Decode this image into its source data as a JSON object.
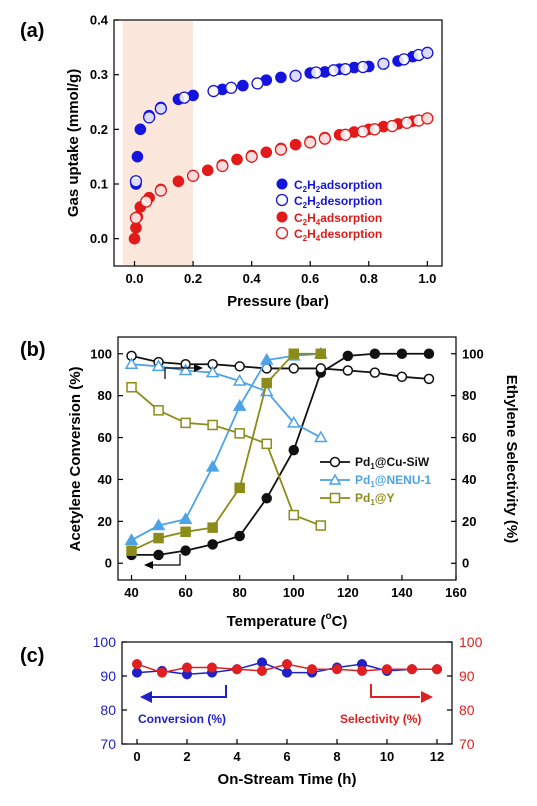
{
  "panels": {
    "a": {
      "label": "(a)"
    },
    "b": {
      "label": "(b)"
    },
    "c": {
      "label": "(c)"
    }
  },
  "colors": {
    "c2h2": "#1414dc",
    "c2h4": "#e21a1a",
    "cu_siw": "#111111",
    "nenu": "#4da3e6",
    "y": "#8c8c1a",
    "highlight": "#fbe7dc",
    "panel_c_conversion": "#2020c8",
    "panel_c_selectivity": "#e02020"
  },
  "chart_data": [
    {
      "panel": "a",
      "type": "scatter",
      "title": "",
      "xlabel": "Pressure (bar)",
      "ylabel": "Gas uptake (mmol/g)",
      "xlim": [
        -0.07,
        1.05
      ],
      "ylim": [
        -0.05,
        0.4
      ],
      "xticks": [
        "0.0",
        "0.2",
        "0.4",
        "0.6",
        "0.8",
        "1.0"
      ],
      "yticks": [
        "0.0",
        "0.1",
        "0.2",
        "0.3",
        "0.4"
      ],
      "highlight_region": [
        -0.04,
        0.2
      ],
      "legend_position": "bottom-right",
      "series": [
        {
          "name": "C2H2 adsorption",
          "legend_prefix": "C",
          "legend_sub1": "2",
          "legend_mid": "H",
          "legend_sub2": "2",
          "legend_suffix": "adsorption",
          "marker": "filled",
          "color_key": "c2h2",
          "x": [
            0.005,
            0.01,
            0.02,
            0.05,
            0.09,
            0.15,
            0.2,
            0.3,
            0.37,
            0.45,
            0.5,
            0.55,
            0.6,
            0.65,
            0.7,
            0.75,
            0.8,
            0.85,
            0.9,
            0.95,
            1.0
          ],
          "y": [
            0.1,
            0.15,
            0.2,
            0.225,
            0.24,
            0.255,
            0.262,
            0.273,
            0.28,
            0.29,
            0.295,
            0.298,
            0.303,
            0.305,
            0.31,
            0.313,
            0.315,
            0.32,
            0.325,
            0.333,
            0.34
          ]
        },
        {
          "name": "C2H2 desorption",
          "legend_prefix": "C",
          "legend_sub1": "2",
          "legend_mid": "H",
          "legend_sub2": "2",
          "legend_suffix": "desorption",
          "marker": "open",
          "color_key": "c2h2",
          "x": [
            0.005,
            0.05,
            0.09,
            0.17,
            0.27,
            0.33,
            0.42,
            0.55,
            0.62,
            0.68,
            0.72,
            0.78,
            0.85,
            0.92,
            0.97,
            1.0
          ],
          "y": [
            0.105,
            0.222,
            0.238,
            0.258,
            0.27,
            0.276,
            0.284,
            0.298,
            0.304,
            0.308,
            0.31,
            0.314,
            0.32,
            0.328,
            0.336,
            0.34
          ]
        },
        {
          "name": "C2H4 adsorption",
          "legend_prefix": "C",
          "legend_sub1": "2",
          "legend_mid": "H",
          "legend_sub2": "4",
          "legend_suffix": "adsorption",
          "marker": "filled",
          "color_key": "c2h4",
          "x": [
            0.0,
            0.005,
            0.01,
            0.02,
            0.05,
            0.09,
            0.15,
            0.2,
            0.25,
            0.3,
            0.35,
            0.4,
            0.45,
            0.5,
            0.55,
            0.6,
            0.65,
            0.7,
            0.75,
            0.8,
            0.85,
            0.9,
            0.95,
            1.0
          ],
          "y": [
            0.0,
            0.02,
            0.04,
            0.058,
            0.075,
            0.09,
            0.105,
            0.115,
            0.125,
            0.135,
            0.145,
            0.152,
            0.158,
            0.165,
            0.172,
            0.178,
            0.185,
            0.19,
            0.195,
            0.2,
            0.205,
            0.21,
            0.215,
            0.22
          ]
        },
        {
          "name": "C2H4 desorption",
          "legend_prefix": "C",
          "legend_sub1": "2",
          "legend_mid": "H",
          "legend_sub2": "4",
          "legend_suffix": "desorption",
          "marker": "open",
          "color_key": "c2h4",
          "x": [
            0.005,
            0.04,
            0.09,
            0.2,
            0.3,
            0.4,
            0.5,
            0.6,
            0.65,
            0.72,
            0.78,
            0.82,
            0.88,
            0.93,
            0.97,
            1.0
          ],
          "y": [
            0.038,
            0.068,
            0.088,
            0.115,
            0.133,
            0.15,
            0.163,
            0.176,
            0.183,
            0.19,
            0.196,
            0.2,
            0.206,
            0.212,
            0.216,
            0.22
          ]
        }
      ]
    },
    {
      "panel": "b",
      "type": "line",
      "title": "",
      "xlabel_prefix": "Temperature (",
      "xlabel_sup": "o",
      "xlabel_suffix": "C)",
      "ylabel": "Acetylene Conversion (%)",
      "y2label": "Ethylene Selectivity (%)",
      "xlim": [
        35,
        160
      ],
      "ylim": [
        -8,
        108
      ],
      "xticks": [
        "40",
        "60",
        "80",
        "100",
        "120",
        "140",
        "160"
      ],
      "yticks": [
        "0",
        "20",
        "40",
        "60",
        "80",
        "100"
      ],
      "legend_position": "right",
      "series": [
        {
          "name": "Pd1@Cu-SiW",
          "legend_prefix": "Pd",
          "legend_sub": "1",
          "legend_suffix": "@Cu-SiW",
          "marker": "circle",
          "color_key": "cu_siw",
          "axis": "left",
          "x": [
            40,
            50,
            60,
            70,
            80,
            90,
            100,
            110,
            120,
            130,
            140,
            150
          ],
          "y": [
            4,
            4,
            6,
            9,
            13,
            31,
            54,
            91,
            99,
            100,
            100,
            100
          ]
        },
        {
          "name": "Pd1@Cu-SiW",
          "marker": "circle",
          "color_key": "cu_siw",
          "axis": "right",
          "x": [
            40,
            50,
            60,
            70,
            80,
            90,
            100,
            110,
            120,
            130,
            140,
            150
          ],
          "y": [
            99,
            96,
            95,
            95,
            94,
            93,
            93,
            93,
            92,
            91,
            89,
            88
          ]
        },
        {
          "name": "Pd1@NENU-1",
          "legend_prefix": "Pd",
          "legend_sub": "1",
          "legend_suffix": "@NENU-1",
          "marker": "triangle",
          "color_key": "nenu",
          "axis": "left",
          "x": [
            40,
            50,
            60,
            70,
            80,
            90,
            100,
            110
          ],
          "y": [
            11,
            18,
            21,
            46,
            75,
            97,
            99,
            100
          ]
        },
        {
          "name": "Pd1@NENU-1",
          "marker": "triangle",
          "color_key": "nenu",
          "axis": "right",
          "x": [
            40,
            50,
            60,
            70,
            80,
            90,
            100,
            110
          ],
          "y": [
            95,
            94,
            92,
            91,
            87,
            82,
            67,
            60
          ]
        },
        {
          "name": "Pd1@Y",
          "legend_prefix": "Pd",
          "legend_sub": "1",
          "legend_suffix": "@Y",
          "marker": "square",
          "color_key": "y",
          "axis": "left",
          "x": [
            40,
            50,
            60,
            70,
            80,
            90,
            100,
            110
          ],
          "y": [
            6,
            12,
            15,
            17,
            36,
            86,
            100,
            100
          ]
        },
        {
          "name": "Pd1@Y",
          "marker": "square",
          "color_key": "y",
          "axis": "right",
          "x": [
            40,
            50,
            60,
            70,
            80,
            90,
            100,
            110
          ],
          "y": [
            84,
            73,
            67,
            66,
            62,
            57,
            23,
            18
          ]
        }
      ]
    },
    {
      "panel": "c",
      "type": "line",
      "title": "",
      "xlabel": "On-Stream Time (h)",
      "xlim": [
        -0.6,
        12.6
      ],
      "ylim": [
        70,
        100
      ],
      "xticks": [
        "0",
        "2",
        "4",
        "6",
        "8",
        "10",
        "12"
      ],
      "yticks": [
        "70",
        "80",
        "90",
        "100"
      ],
      "series": [
        {
          "name": "Conversion (%)",
          "marker": "circle",
          "color_key": "panel_c_conversion",
          "axis": "left",
          "arrow": "left",
          "x": [
            0,
            1,
            2,
            3,
            4,
            5,
            6,
            7,
            8,
            9,
            10,
            11,
            12
          ],
          "y": [
            91,
            91.5,
            90.5,
            91,
            92,
            94,
            91,
            91,
            92.5,
            93.5,
            91.5,
            92,
            92
          ]
        },
        {
          "name": "Selectivity (%)",
          "marker": "circle",
          "color_key": "panel_c_selectivity",
          "axis": "right",
          "arrow": "right",
          "x": [
            0,
            1,
            2,
            3,
            4,
            5,
            6,
            7,
            8,
            9,
            10,
            11,
            12
          ],
          "y": [
            93.5,
            91,
            92.5,
            92.5,
            92,
            91.5,
            93.5,
            92,
            92,
            91.5,
            92,
            92,
            92
          ]
        }
      ]
    }
  ]
}
